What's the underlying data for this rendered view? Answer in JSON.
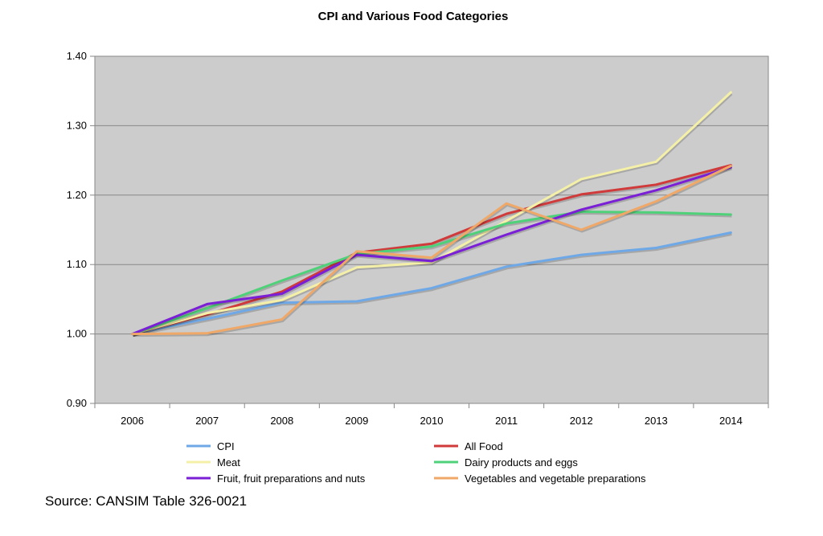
{
  "chart_data": {
    "type": "line",
    "title": "CPI and Various Food Categories",
    "xlabel": "",
    "ylabel": "",
    "categories": [
      "2006",
      "2007",
      "2008",
      "2009",
      "2010",
      "2011",
      "2012",
      "2013",
      "2014"
    ],
    "ylim": [
      0.9,
      1.4
    ],
    "yticks": [
      "0.90",
      "1.00",
      "1.10",
      "1.20",
      "1.30",
      "1.40"
    ],
    "grid": true,
    "legend_position": "bottom",
    "series": [
      {
        "name": "CPI",
        "color": "#6fa8e6",
        "values": [
          1.0,
          1.022,
          1.045,
          1.047,
          1.066,
          1.097,
          1.114,
          1.124,
          1.146
        ]
      },
      {
        "name": "All Food",
        "color": "#d03a3a",
        "values": [
          1.0,
          1.028,
          1.061,
          1.117,
          1.13,
          1.173,
          1.201,
          1.215,
          1.243
        ]
      },
      {
        "name": "Meat",
        "color": "#f5f0a8",
        "values": [
          1.0,
          1.03,
          1.049,
          1.096,
          1.103,
          1.163,
          1.223,
          1.248,
          1.348
        ]
      },
      {
        "name": "Dairy products and eggs",
        "color": "#4fd17a",
        "values": [
          1.0,
          1.037,
          1.077,
          1.115,
          1.126,
          1.159,
          1.176,
          1.175,
          1.172
        ]
      },
      {
        "name": "Fruit, fruit preparations and nuts",
        "color": "#7a1fd6",
        "values": [
          1.0,
          1.043,
          1.058,
          1.114,
          1.105,
          1.143,
          1.179,
          1.207,
          1.24
        ]
      },
      {
        "name": "Vegetables and vegetable preparations",
        "color": "#f0a868",
        "values": [
          1.0,
          1.001,
          1.021,
          1.119,
          1.11,
          1.188,
          1.15,
          1.191,
          1.242
        ]
      }
    ]
  },
  "source": "Source: CANSIM Table 326-0021"
}
